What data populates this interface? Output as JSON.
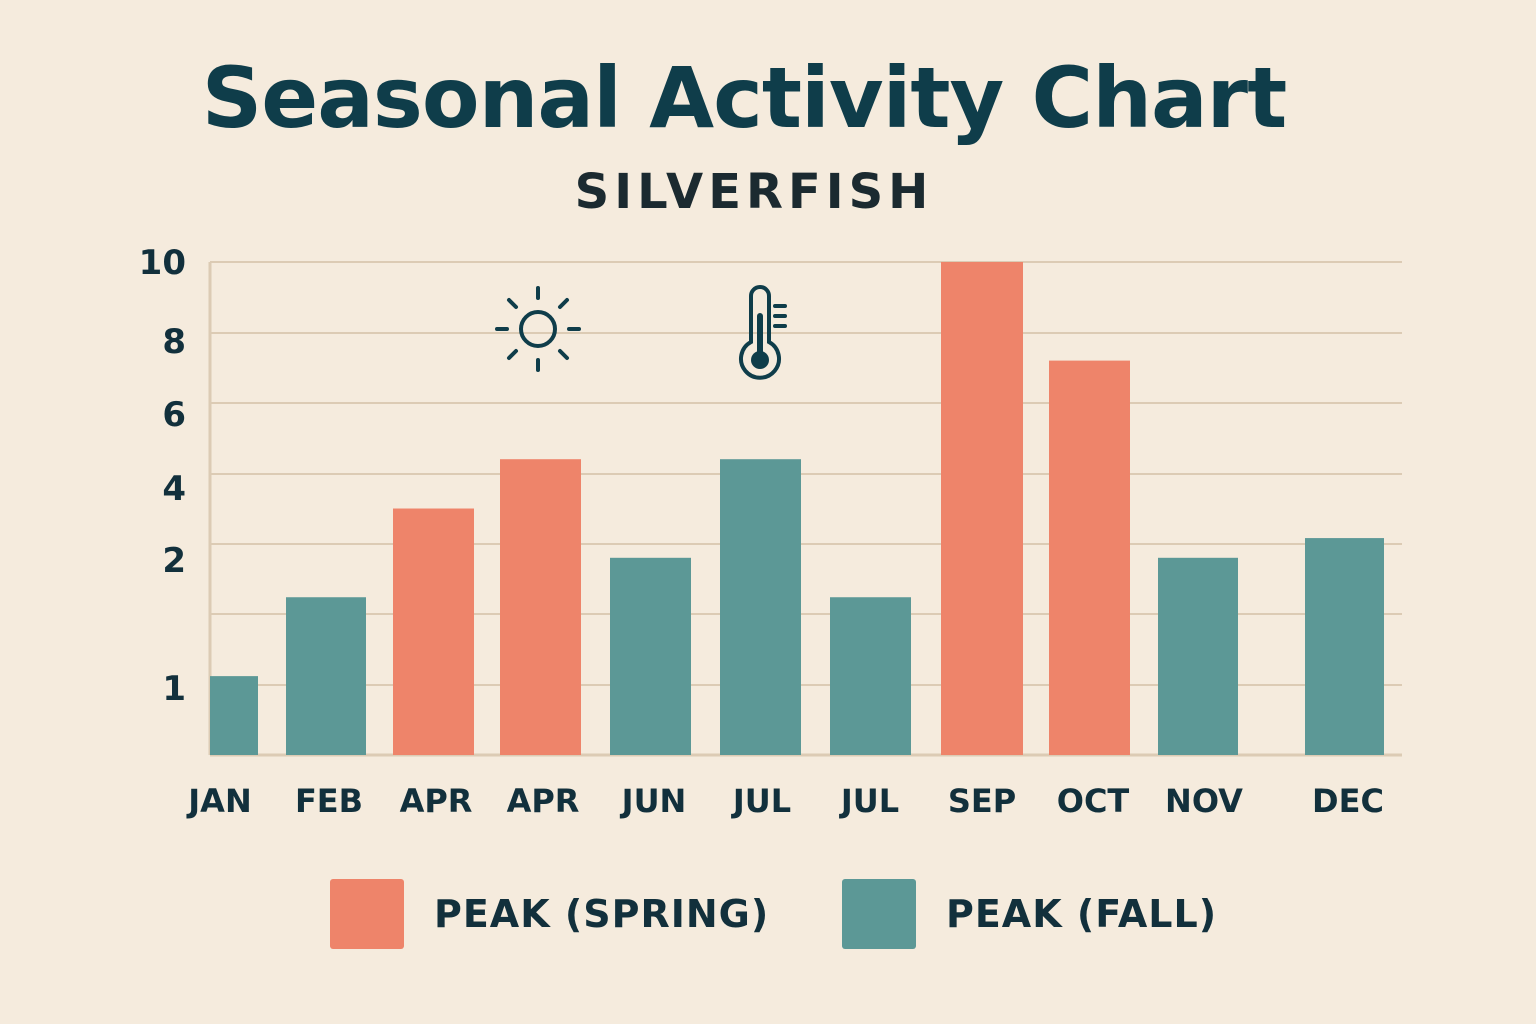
{
  "title": "Seasonal Activity Chart",
  "subtitle": "SILVERFISH",
  "colors": {
    "background": "#f5ebdd",
    "spring": "#ee846a",
    "fall": "#5c9896",
    "gridline": "#dccbb4",
    "text": "#12303c"
  },
  "icons": [
    "sun-icon",
    "thermometer-icon"
  ],
  "chart_data": {
    "type": "bar",
    "categories": [
      "JAN",
      "FEB",
      "APR",
      "APR",
      "JUN",
      "JUL",
      "JUL",
      "SEP",
      "OCT",
      "NOV",
      "DEC"
    ],
    "values": [
      1.6,
      3.2,
      5.0,
      6.0,
      4.0,
      6.0,
      3.2,
      10.0,
      8.0,
      4.0,
      4.4
    ],
    "bar_series": [
      "fall",
      "fall",
      "spring",
      "spring",
      "fall",
      "fall",
      "fall",
      "spring",
      "spring",
      "fall",
      "fall"
    ],
    "series": [
      {
        "key": "spring",
        "name": "PEAK (SPRING)",
        "color": "#ee846a"
      },
      {
        "key": "fall",
        "name": "PEAK (FALL)",
        "color": "#5c9896"
      }
    ],
    "yticks": [
      "1",
      "2",
      "4",
      "6",
      "8",
      "10"
    ],
    "ylim": [
      0,
      10
    ],
    "grid": true,
    "legend_position": "bottom",
    "xlabel": "",
    "ylabel": ""
  }
}
